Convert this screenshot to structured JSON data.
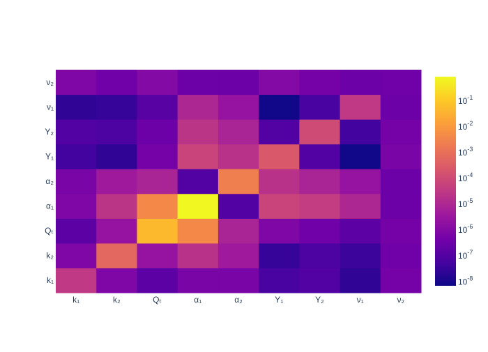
{
  "chart_data": {
    "type": "heatmap",
    "title": "",
    "xlabel": "",
    "ylabel": "",
    "x_categories": [
      "k₁",
      "k₂",
      "Qₜ",
      "α₁",
      "α₂",
      "Y₁",
      "Y₂",
      "ν₁",
      "ν₂"
    ],
    "y_categories": [
      "k₁",
      "k₂",
      "Qₜ",
      "α₁",
      "α₂",
      "Y₁",
      "Y₂",
      "ν₁",
      "ν₂"
    ],
    "z": [
      [
        3.2e-05,
        7.9e-07,
        1.6e-07,
        6.3e-07,
        6.3e-07,
        6.3e-08,
        1e-07,
        2.5e-08,
        5e-07
      ],
      [
        7.9e-07,
        0.00063,
        2.5e-06,
        2e-05,
        4e-06,
        3.2e-08,
        7.9e-08,
        4e-08,
        4e-07
      ],
      [
        1.6e-07,
        2.5e-06,
        0.05,
        0.004,
        7.9e-06,
        7.9e-07,
        4e-07,
        1.6e-07,
        5e-07
      ],
      [
        7.9e-07,
        2.5e-05,
        0.004,
        0.8,
        1e-07,
        6.3e-05,
        4e-05,
        1e-05,
        3.2e-07
      ],
      [
        6.3e-07,
        4e-06,
        7.9e-06,
        1e-07,
        0.0025,
        2e-05,
        7.9e-06,
        2.5e-06,
        3.2e-07
      ],
      [
        5e-08,
        2.5e-08,
        5e-07,
        6.3e-05,
        2e-05,
        0.00025,
        1e-07,
        7.9e-09,
        6.3e-07
      ],
      [
        1e-07,
        7.9e-08,
        3.2e-07,
        2.5e-05,
        7.9e-06,
        1e-07,
        0.0001,
        5e-08,
        5e-07
      ],
      [
        2.5e-08,
        3.2e-08,
        1.3e-07,
        1e-05,
        2.5e-06,
        7.9e-09,
        6.3e-08,
        3.2e-05,
        3.2e-07
      ],
      [
        7.9e-07,
        4e-07,
        1e-06,
        3.2e-07,
        3.2e-07,
        1e-06,
        5e-07,
        3.2e-07,
        4e-07
      ]
    ],
    "colorscale": "plasma",
    "color_scale_type": "log",
    "color_range": [
      7e-09,
      0.88
    ],
    "colorbar": {
      "tick_base": "10",
      "tick_exponents": [
        "-1",
        "-2",
        "-3",
        "-4",
        "-5",
        "-6",
        "-7",
        "-8"
      ]
    }
  }
}
